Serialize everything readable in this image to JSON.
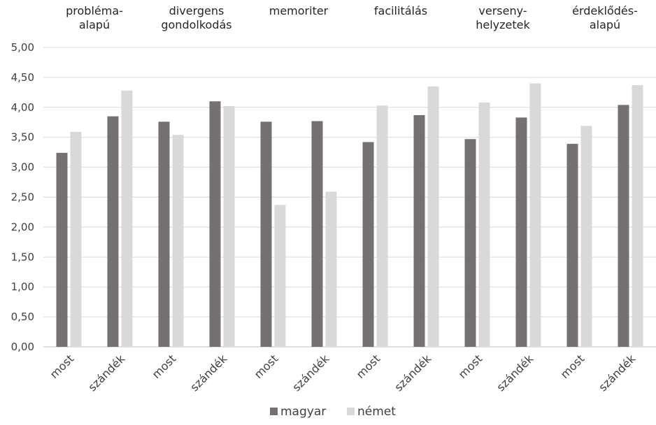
{
  "chart_data": {
    "type": "bar",
    "groups": [
      {
        "label": [
          "probléma-",
          "alapú"
        ]
      },
      {
        "label": [
          "divergens",
          "gondolkodás"
        ]
      },
      {
        "label": [
          "memoriter"
        ]
      },
      {
        "label": [
          "facilitálás"
        ]
      },
      {
        "label": [
          "verseny-",
          "helyzetek"
        ]
      },
      {
        "label": [
          "érdeklődés-",
          "alapú"
        ]
      }
    ],
    "categories": [
      "most",
      "szándék",
      "most",
      "szándék",
      "most",
      "szándék",
      "most",
      "szándék",
      "most",
      "szándék",
      "most",
      "szándék"
    ],
    "series": [
      {
        "name": "magyar",
        "color": "#767171",
        "values": [
          3.24,
          3.85,
          3.76,
          4.1,
          3.76,
          3.77,
          3.42,
          3.87,
          3.47,
          3.83,
          3.39,
          4.04
        ]
      },
      {
        "name": "német",
        "color": "#d9d9d9",
        "values": [
          3.59,
          4.28,
          3.54,
          4.02,
          2.37,
          2.59,
          4.03,
          4.35,
          4.08,
          4.4,
          3.69,
          4.37
        ]
      }
    ],
    "ylim": [
      0,
      5
    ],
    "yticks": [
      "0,00",
      "0,50",
      "1,00",
      "1,50",
      "2,00",
      "2,50",
      "3,00",
      "3,50",
      "4,00",
      "4,50",
      "5,00"
    ],
    "grid": true,
    "legend": "bottom"
  }
}
